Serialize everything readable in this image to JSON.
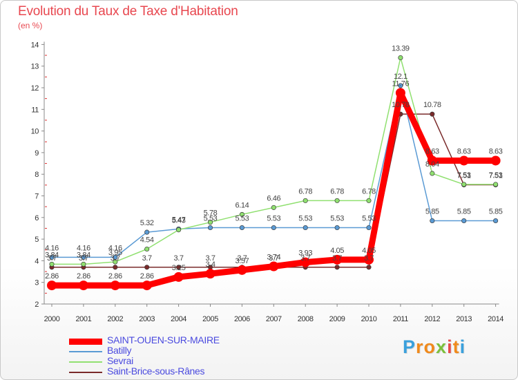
{
  "title": "Evolution du Taux de Taxe d'Habitation",
  "unit": "(en %)",
  "logo": {
    "letters": [
      "P",
      "r",
      "o",
      "x",
      "i",
      "t",
      "i"
    ],
    "colors": [
      "#3aa0dc",
      "#f08a1c",
      "#f08a1c",
      "#7cc03c",
      "#e84a4a",
      "#f08a1c",
      "#3aa0dc"
    ]
  },
  "chart_data": {
    "type": "line",
    "title": "Evolution du Taux de Taxe d'Habitation",
    "ylabel": "(en %)",
    "xlabel": "",
    "x": [
      "2000",
      "2001",
      "2002",
      "2003",
      "2004",
      "2005",
      "2006",
      "2007",
      "2008",
      "2009",
      "2010",
      "2011",
      "2012",
      "2013",
      "2014"
    ],
    "ylim": [
      2,
      14
    ],
    "yticks": [
      "2",
      "3",
      "4",
      "5",
      "6",
      "7",
      "8",
      "9",
      "10",
      "11",
      "12",
      "13",
      "14"
    ],
    "grid": false,
    "legend_position": "bottom",
    "series": [
      {
        "name": "SAINT-OUEN-SUR-MAIRE",
        "color": "#ff0000",
        "values": [
          2.86,
          2.86,
          2.86,
          2.86,
          3.25,
          3.4,
          3.57,
          3.74,
          3.93,
          4.05,
          4.05,
          11.76,
          8.63,
          8.63,
          8.63
        ],
        "labels": [
          "2.86",
          "2.86",
          "2.86",
          "2.86",
          "3.25",
          "3.4",
          "3.57",
          "3.74",
          "3.93",
          "4.05",
          "4.05",
          "11.76",
          "8.63",
          "8.63",
          "8.63"
        ]
      },
      {
        "name": "Batilly",
        "color": "#5a9ad4",
        "values": [
          4.16,
          4.16,
          4.16,
          5.32,
          5.47,
          5.53,
          5.53,
          5.53,
          5.53,
          5.53,
          5.53,
          12.1,
          5.85,
          5.85,
          5.85
        ],
        "labels": [
          "4.16",
          "4.16",
          "4.16",
          "5.32",
          "5.47",
          "5.53",
          "5.53",
          "5.53",
          "5.53",
          "5.53",
          "5.53",
          "12.1",
          "5.85",
          "5.85",
          "5.85"
        ]
      },
      {
        "name": "Sevrai",
        "color": "#90e070",
        "values": [
          3.84,
          3.84,
          3.95,
          4.54,
          5.43,
          5.78,
          6.14,
          6.46,
          6.78,
          6.78,
          6.78,
          13.39,
          8.04,
          7.53,
          7.53
        ],
        "labels": [
          "3.84",
          "3.84",
          "3.95",
          "4.54",
          "5.43",
          "5.78",
          "6.14",
          "6.46",
          "6.78",
          "6.78",
          "6.78",
          "13.39",
          "8.04",
          "7.53",
          "7.53"
        ]
      },
      {
        "name": "Saint-Brice-sous-Rânes",
        "color": "#7a2a2a",
        "values": [
          3.7,
          3.7,
          3.7,
          3.7,
          3.7,
          3.7,
          3.7,
          3.7,
          3.7,
          3.7,
          3.7,
          10.78,
          10.78,
          7.51,
          7.51
        ],
        "labels": [
          "3.7",
          "3.7",
          "3.7",
          "3.7",
          "3.7",
          "3.7",
          "3.7",
          "3.7",
          "3.7",
          "3.7",
          "3.7",
          "10.78",
          "10.78",
          "7.51",
          "7.51"
        ]
      }
    ]
  }
}
